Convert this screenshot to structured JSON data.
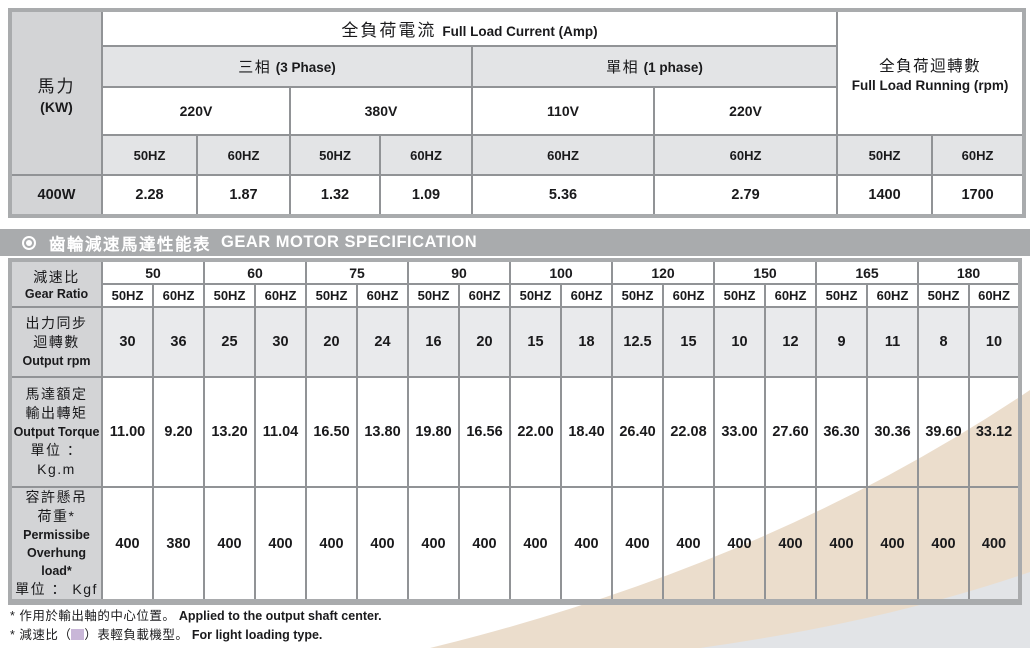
{
  "colors": {
    "banner_gray": "#a9abad",
    "grid_line": "#919396",
    "label_gray": "#d3d4d6",
    "header_shade_gray": "#e3e4e6",
    "rpm_row_gray": "#e9eaec",
    "light_loading_purple": "#c9b7d8",
    "swoosh_beige": "#ebddcc",
    "swoosh_gray": "#e2e4e7",
    "text_black": "#1a1a1c"
  },
  "current_table": {
    "hp_label": {
      "zh": "馬力",
      "en": "(KW)"
    },
    "full_load_current": {
      "zh": "全負荷電流",
      "en": "Full Load Current (Amp)"
    },
    "three_phase": {
      "zh": "三相",
      "en": "(3 Phase)"
    },
    "single_phase": {
      "zh": "單相",
      "en": "(1 phase)"
    },
    "full_load_running": {
      "zh": "全負荷迴轉數",
      "en": "Full Load Running (rpm)"
    },
    "voltages": [
      "220V",
      "380V",
      "110V",
      "220V"
    ],
    "hz_headers": [
      "50HZ",
      "60HZ",
      "50HZ",
      "60HZ",
      "60HZ",
      "60HZ",
      "50HZ",
      "60HZ"
    ],
    "row": {
      "model": "400W",
      "values": [
        "2.28",
        "1.87",
        "1.32",
        "1.09",
        "5.36",
        "2.79",
        "1400",
        "1700"
      ]
    }
  },
  "banner": {
    "icon": "bullseye",
    "zh": "齒輪減速馬達性能表",
    "en": "GEAR MOTOR SPECIFICATION"
  },
  "gear_table": {
    "ratio_label": {
      "zh": "減速比",
      "en": "Gear Ratio"
    },
    "hz_pair": [
      "50HZ",
      "60HZ"
    ],
    "ratios": [
      {
        "value": "50",
        "light": false
      },
      {
        "value": "60",
        "light": false
      },
      {
        "value": "75",
        "light": false
      },
      {
        "value": "90",
        "light": false
      },
      {
        "value": "100",
        "light": true
      },
      {
        "value": "120",
        "light": true
      },
      {
        "value": "150",
        "light": true
      },
      {
        "value": "165",
        "light": true
      },
      {
        "value": "180",
        "light": true
      }
    ],
    "rows": [
      {
        "name": "output-rpm",
        "shaded": true,
        "label_lines": [
          "出力同步",
          "迴轉數",
          "Output rpm"
        ],
        "values": [
          "30",
          "36",
          "25",
          "30",
          "20",
          "24",
          "16",
          "20",
          "15",
          "18",
          "12.5",
          "15",
          "10",
          "12",
          "9",
          "11",
          "8",
          "10"
        ]
      },
      {
        "name": "output-torque",
        "shaded": false,
        "label_lines": [
          "馬達額定",
          "輸出轉矩",
          "Output Torque",
          "單位 ： Kg.m"
        ],
        "values": [
          "11.00",
          "9.20",
          "13.20",
          "11.04",
          "16.50",
          "13.80",
          "19.80",
          "16.56",
          "22.00",
          "18.40",
          "26.40",
          "22.08",
          "33.00",
          "27.60",
          "36.30",
          "30.36",
          "39.60",
          "33.12"
        ]
      },
      {
        "name": "overhung-load",
        "shaded": false,
        "label_lines": [
          "容許懸吊",
          "荷重*",
          "Permissibe",
          "Overhung load*",
          "單位 ： Kgf"
        ],
        "values": [
          "400",
          "380",
          "400",
          "400",
          "400",
          "400",
          "400",
          "400",
          "400",
          "400",
          "400",
          "400",
          "400",
          "400",
          "400",
          "400",
          "400",
          "400"
        ]
      }
    ]
  },
  "footnotes": {
    "shaft_center": {
      "zh": "* 作用於輸出軸的中心位置。",
      "en": "Applied to the output shaft center."
    },
    "light_loading": {
      "zh_pre": "* 減速比（",
      "swatch": "purple-square",
      "zh_post": "）表輕負載機型。",
      "en": "For light loading type."
    }
  }
}
